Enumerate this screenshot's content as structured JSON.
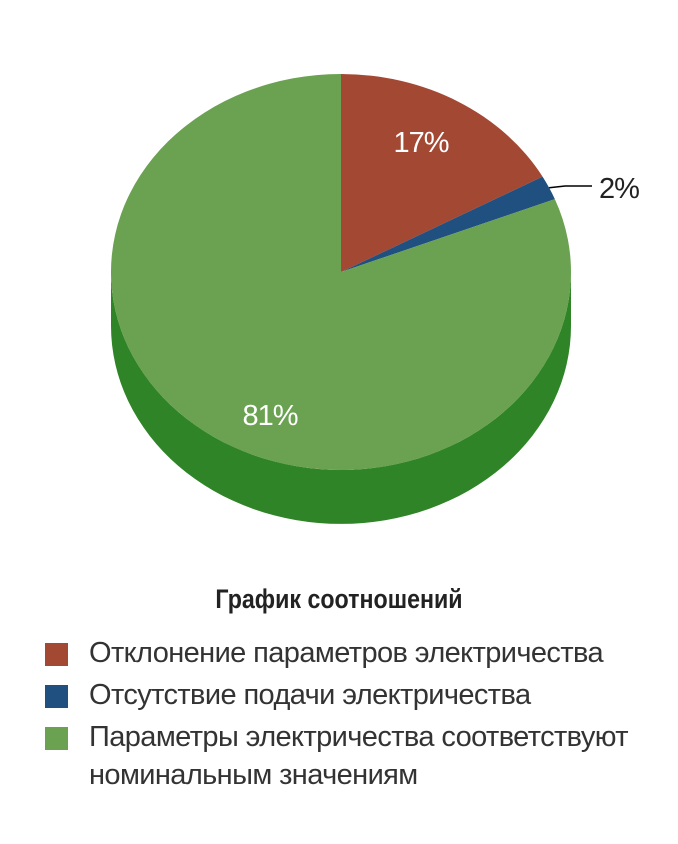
{
  "chart_data": {
    "type": "pie",
    "title": "График соотношений",
    "slices": [
      {
        "label": "Отклонение параметров электричества",
        "value": 17,
        "display": "17%",
        "color": "#a34833"
      },
      {
        "label": "Отсутствие подачи электричества",
        "value": 2,
        "display": "2%",
        "color": "#1f5080"
      },
      {
        "label": "Параметры электричества соответствуют номинальным значениям",
        "value": 81,
        "display": "81%",
        "color": "#6aa251"
      }
    ],
    "legend_position": "bottom",
    "three_d": true
  },
  "colors": {
    "red_top": "#a34833",
    "blue_top": "#1f5080",
    "green_top": "#6aa251",
    "green_side": "#2f8427",
    "label_light": "#ffffff",
    "label_dark": "#222222"
  }
}
